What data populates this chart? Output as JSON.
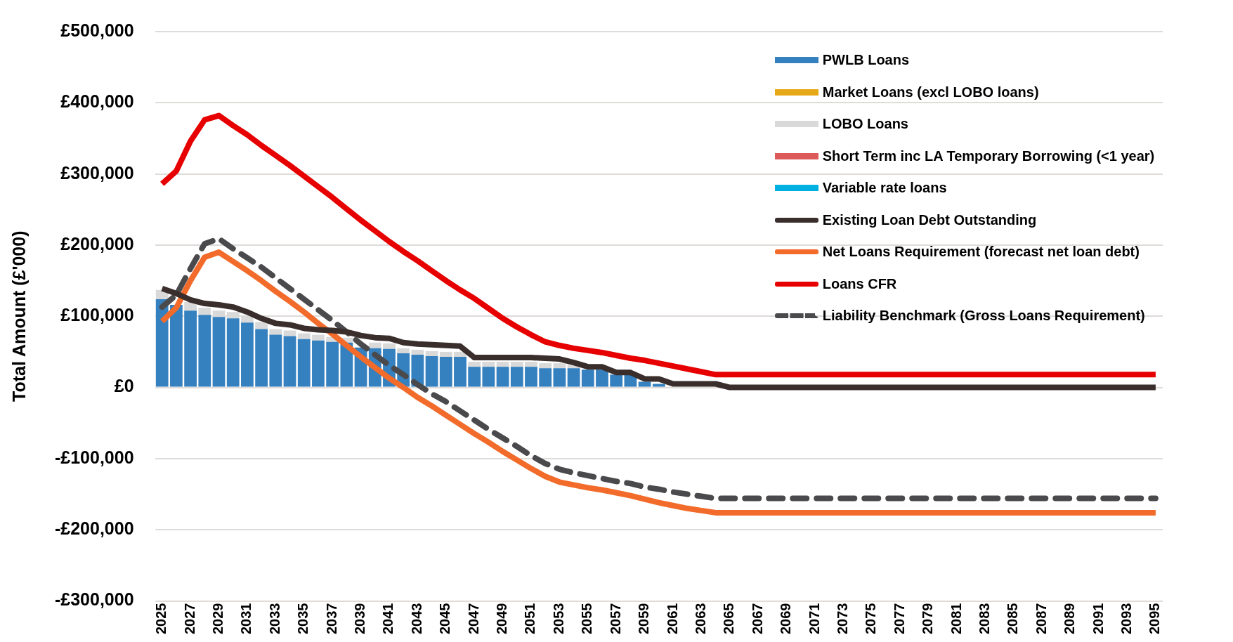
{
  "chart_data": {
    "type": "bar",
    "stacked": true,
    "grid": "y",
    "legend": "top right",
    "marker": "none",
    "ylabel": "Total Amount (£'000)",
    "categories": [
      "2025",
      null,
      "2027",
      null,
      "2029",
      null,
      "2031",
      null,
      "2033",
      null,
      "2035",
      null,
      "2037",
      null,
      "2039",
      null,
      "2041",
      null,
      "2043",
      null,
      "2045",
      null,
      "2047",
      null,
      "2049",
      null,
      "2051",
      null,
      "2053",
      null,
      "2055",
      null,
      "2057",
      null,
      "2059",
      null,
      "2061",
      null,
      "2063",
      null,
      "2065",
      null,
      "2067",
      null,
      "2069",
      null,
      "2071",
      null,
      "2073",
      null,
      "2075",
      null,
      "2077",
      null,
      "2079",
      null,
      "2081",
      null,
      "2083",
      null,
      "2085",
      null,
      "2087",
      null,
      "2089",
      null,
      "2091",
      null,
      "2093",
      null,
      "2095"
    ],
    "ylim": [
      -300000,
      500000
    ],
    "yticks": [
      {
        "value": -300000,
        "label": "-£300,000"
      },
      {
        "value": -200000,
        "label": "-£200,000"
      },
      {
        "value": -100000,
        "label": "-£100,000"
      },
      {
        "value": 0,
        "label": "£0"
      },
      {
        "value": 100000,
        "label": "£100,000"
      },
      {
        "value": 200000,
        "label": "£200,000"
      },
      {
        "value": 300000,
        "label": "£300,000"
      },
      {
        "value": 400000,
        "label": "£400,000"
      },
      {
        "value": 500000,
        "label": "£500,000"
      }
    ],
    "series": [
      {
        "name": "PWLB Loans",
        "color": "#3580bf",
        "values": [
          124000,
          116000,
          108000,
          102000,
          99000,
          97000,
          91000,
          82000,
          74000,
          72000,
          68000,
          66000,
          64000,
          63000,
          56000,
          55000,
          54000,
          48000,
          46000,
          44000,
          43000,
          43000,
          29000,
          29000,
          29000,
          29000,
          29000,
          27000,
          27000,
          27000,
          25000,
          25000,
          18000,
          18000,
          8000,
          5000,
          0,
          0,
          0,
          0,
          0,
          0,
          0,
          0,
          0,
          0,
          0,
          0,
          0,
          0,
          0,
          0,
          0,
          0,
          0,
          0,
          0,
          0,
          0,
          0,
          0,
          0,
          0,
          0,
          0,
          0,
          0,
          0,
          0,
          0,
          0
        ]
      },
      {
        "name": "Market Loans (excl LOBO loans)",
        "color": "#e6a817",
        "values": [
          0,
          0,
          0,
          0,
          0,
          0,
          0,
          0,
          0,
          0,
          0,
          0,
          0,
          0,
          0,
          0,
          0,
          0,
          0,
          0,
          0,
          0,
          0,
          0,
          0,
          0,
          0,
          0,
          0,
          0,
          0,
          0,
          0,
          0,
          0,
          0,
          0,
          0,
          0,
          0,
          0,
          0,
          0,
          0,
          0,
          0,
          0,
          0,
          0,
          0,
          0,
          0,
          0,
          0,
          0,
          0,
          0,
          0,
          0,
          0,
          0,
          0,
          0,
          0,
          0,
          0,
          0,
          0,
          0,
          0,
          0
        ]
      },
      {
        "name": "LOBO Loans",
        "color": "#d9d9d9",
        "values": [
          13000,
          null,
          12000,
          10000,
          9000,
          9000,
          9000,
          10000,
          8000,
          8000,
          8000,
          8000,
          7000,
          7000,
          null,
          8000,
          8000,
          7000,
          7000,
          7000,
          7000,
          7000,
          7000,
          7000,
          7000,
          7000,
          7000,
          7000,
          7000,
          5000,
          0,
          0,
          0,
          0,
          0,
          0,
          0,
          0,
          0,
          0,
          0,
          0,
          0,
          0,
          0,
          0,
          0,
          0,
          0,
          0,
          0,
          0,
          0,
          0,
          0,
          0,
          0,
          0,
          0,
          0,
          0,
          0,
          0,
          0,
          0,
          0,
          0,
          0,
          0,
          0,
          0
        ]
      },
      {
        "name": "Short Term inc LA Temporary Borrowing (<1 year)",
        "color": "#dc5a5a",
        "values": [
          0,
          0,
          0,
          0,
          0,
          0,
          0,
          0,
          0,
          0,
          0,
          0,
          0,
          0,
          0,
          0,
          0,
          0,
          0,
          0,
          0,
          0,
          0,
          0,
          0,
          0,
          0,
          0,
          0,
          0,
          0,
          0,
          0,
          0,
          0,
          0,
          0,
          0,
          0,
          0,
          0,
          0,
          0,
          0,
          0,
          0,
          0,
          0,
          0,
          0,
          0,
          0,
          0,
          0,
          0,
          0,
          0,
          0,
          0,
          0,
          0,
          0,
          0,
          0,
          0,
          0,
          0,
          0,
          0,
          0,
          0
        ]
      },
      {
        "name": "Variable rate loans",
        "color": "#00b0e0",
        "values": [
          0,
          0,
          0,
          0,
          0,
          0,
          0,
          0,
          0,
          0,
          0,
          0,
          0,
          0,
          0,
          0,
          0,
          0,
          0,
          0,
          0,
          0,
          0,
          0,
          0,
          0,
          0,
          0,
          0,
          0,
          0,
          0,
          0,
          0,
          0,
          0,
          0,
          0,
          0,
          0,
          0,
          0,
          0,
          0,
          0,
          0,
          0,
          0,
          0,
          0,
          0,
          0,
          0,
          0,
          0,
          0,
          0,
          0,
          0,
          0,
          0,
          0,
          0,
          0,
          0,
          0,
          0,
          0,
          0,
          0,
          0
        ]
      },
      {
        "name": "Existing Loan Debt Outstanding",
        "type": "line",
        "line_style": "solid",
        "color": "#3a2e2c",
        "values": [
          139000,
          132000,
          123000,
          118000,
          116000,
          113000,
          106000,
          97000,
          90000,
          88000,
          83000,
          81000,
          80000,
          78000,
          73000,
          70000,
          69000,
          63000,
          61000,
          60000,
          59000,
          58000,
          42000,
          42000,
          42000,
          42000,
          42000,
          41000,
          40000,
          35000,
          29000,
          29000,
          21000,
          21000,
          12000,
          12000,
          5000,
          5000,
          5000,
          5000,
          0,
          0,
          0,
          0,
          0,
          0,
          0,
          0,
          0,
          0,
          0,
          0,
          0,
          0,
          0,
          0,
          0,
          0,
          0,
          0,
          0,
          0,
          0,
          0,
          0,
          0,
          0,
          0,
          0,
          0,
          0
        ]
      },
      {
        "name": "Net Loans Requirement (forecast net loan debt)",
        "type": "line",
        "line_style": "solid",
        "color": "#f26b2a",
        "values": [
          93000,
          112000,
          150000,
          183000,
          190000,
          177000,
          164000,
          150000,
          135000,
          121000,
          106000,
          90000,
          75000,
          59000,
          43000,
          28000,
          13000,
          0,
          -14000,
          -26000,
          -39000,
          -52000,
          -65000,
          -77000,
          -90000,
          -102000,
          -114000,
          -125000,
          -133000,
          -137000,
          -141000,
          -144000,
          -148000,
          -152000,
          -157000,
          -162000,
          -166000,
          -170000,
          -173000,
          -176000,
          -176000,
          -176000,
          -176000,
          -176000,
          -176000,
          -176000,
          -176000,
          -176000,
          -176000,
          -176000,
          -176000,
          -176000,
          -176000,
          -176000,
          -176000,
          -176000,
          -176000,
          -176000,
          -176000,
          -176000,
          -176000,
          -176000,
          -176000,
          -176000,
          -176000,
          -176000,
          -176000,
          -176000,
          -176000,
          -176000,
          -176000
        ]
      },
      {
        "name": "Loans CFR",
        "type": "line",
        "line_style": "solid",
        "color": "#e60000",
        "values": [
          286000,
          304000,
          346000,
          376000,
          382000,
          368000,
          355000,
          340000,
          326000,
          312000,
          297000,
          282000,
          267000,
          251000,
          235000,
          220000,
          205000,
          191000,
          178000,
          164000,
          150000,
          137000,
          125000,
          111000,
          97000,
          85000,
          74000,
          64000,
          59000,
          55000,
          52000,
          49000,
          45000,
          41000,
          38000,
          34000,
          30000,
          26000,
          22000,
          18000,
          18000,
          18000,
          18000,
          18000,
          18000,
          18000,
          18000,
          18000,
          18000,
          18000,
          18000,
          18000,
          18000,
          18000,
          18000,
          18000,
          18000,
          18000,
          18000,
          18000,
          18000,
          18000,
          18000,
          18000,
          18000,
          18000,
          18000,
          18000,
          18000,
          18000,
          18000
        ]
      },
      {
        "name": "Liability Benchmark (Gross Loans Requirement)",
        "type": "line",
        "line_style": "dashed",
        "color": "#4a4a4d",
        "values": [
          113000,
          130000,
          167000,
          202000,
          209000,
          195000,
          182000,
          169000,
          154000,
          139000,
          124000,
          109000,
          94000,
          78000,
          61000,
          46000,
          31000,
          18000,
          4000,
          -9000,
          -20000,
          -33000,
          -46000,
          -59000,
          -71000,
          -83000,
          -96000,
          -107000,
          -115000,
          -120000,
          -124000,
          -128000,
          -132000,
          -135000,
          -140000,
          -143000,
          -147000,
          -150000,
          -153000,
          -156000,
          -156000,
          -156000,
          -156000,
          -156000,
          -156000,
          -156000,
          -156000,
          -156000,
          -156000,
          -156000,
          -156000,
          -156000,
          -156000,
          -156000,
          -156000,
          -156000,
          -156000,
          -156000,
          -156000,
          -156000,
          -156000,
          -156000,
          -156000,
          -156000,
          -156000,
          -156000,
          -156000,
          -156000,
          -156000,
          -156000,
          -156000
        ]
      }
    ]
  }
}
